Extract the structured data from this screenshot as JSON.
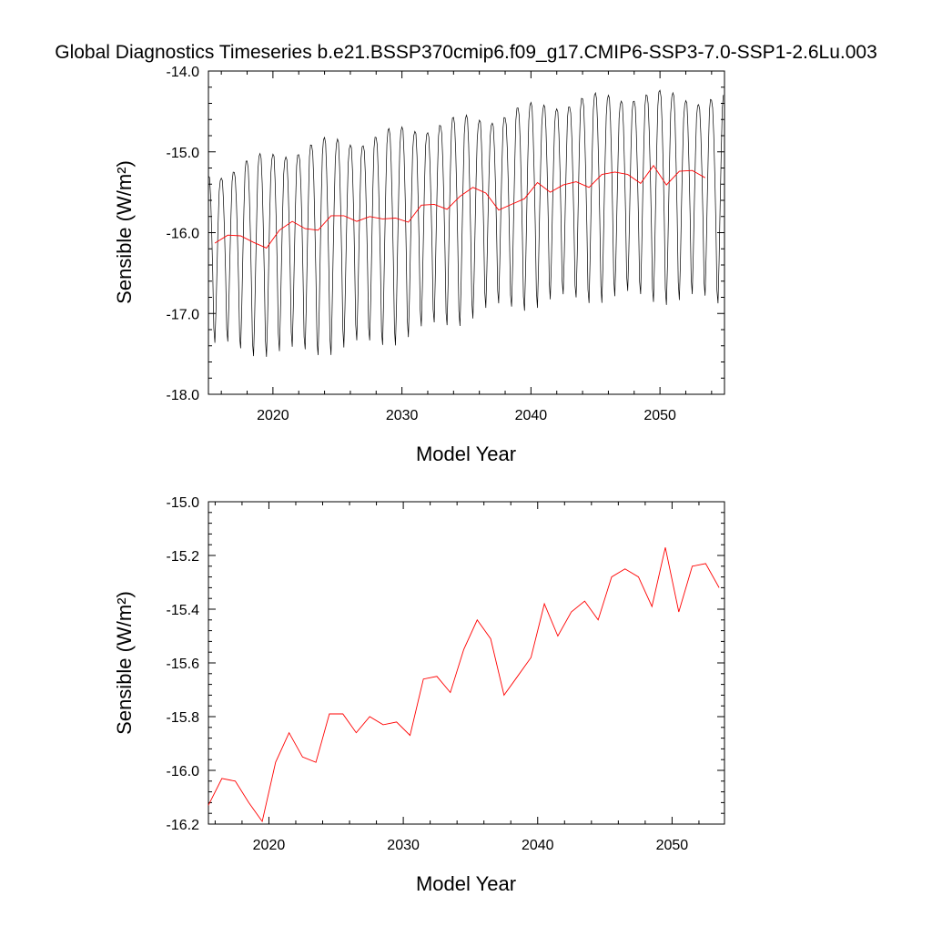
{
  "figure": {
    "title": "Global Diagnostics Timeseries b.e21.BSSP370cmip6.f09_g17.CMIP6-SSP3-7.0-SSP1-2.6Lu.003"
  },
  "colors": {
    "monthly_series": "#000000",
    "annual_series": "#ff0000",
    "axes": "#000000"
  },
  "chart_data": [
    {
      "type": "line",
      "xlabel": "Model Year",
      "ylabel": "Sensible (W/m²)",
      "xlim": [
        2015,
        2055
      ],
      "ylim": [
        -18,
        -14
      ],
      "x_ticks": [
        2020,
        2030,
        2040,
        2050
      ],
      "y_ticks": [
        -18,
        -17,
        -16,
        -15,
        -14
      ],
      "x_tick_labels": [
        "2020",
        "2030",
        "2040",
        "2050"
      ],
      "y_tick_labels": [
        "-18.0",
        "-17.0",
        "-16.0",
        "-15.0",
        "-14.0"
      ],
      "grid": false,
      "monthly_cycle": {
        "start_year": 2015.0,
        "points_per_year": 12,
        "shape": [
          1.0,
          0.95,
          0.7,
          0.3,
          -0.2,
          -0.85,
          -1.0,
          -0.6,
          -0.05,
          0.45,
          0.85,
          0.98
        ],
        "upper_envelope": [
          -15.3,
          -15.15,
          -15.0,
          -14.9,
          -14.85,
          -14.75,
          -14.65,
          -14.6,
          -14.5,
          -14.4,
          -14.35,
          -14.3,
          -14.35
        ],
        "lower_envelope": [
          -17.4,
          -17.45,
          -17.5,
          -17.45,
          -17.4,
          -17.3,
          -17.15,
          -17.0,
          -16.9,
          -16.85,
          -16.8,
          -16.8,
          -16.85
        ],
        "envelope_years": [
          2015,
          2018,
          2021,
          2024,
          2027,
          2030,
          2033,
          2036,
          2039,
          2042,
          2045,
          2048,
          2055
        ]
      },
      "series": [
        {
          "kind": "annual",
          "x": [
            2015.5,
            2016.5,
            2017.5,
            2018.5,
            2019.5,
            2020.5,
            2021.5,
            2022.5,
            2023.5,
            2024.5,
            2025.5,
            2026.5,
            2027.5,
            2028.5,
            2029.5,
            2030.5,
            2031.5,
            2032.5,
            2033.5,
            2034.5,
            2035.5,
            2036.5,
            2037.5,
            2038.5,
            2039.5,
            2040.5,
            2041.5,
            2042.5,
            2043.5,
            2044.5,
            2045.5,
            2046.5,
            2047.5,
            2048.5,
            2049.5,
            2050.5,
            2051.5,
            2052.5,
            2053.5
          ],
          "values": [
            -16.13,
            -16.03,
            -16.04,
            -16.12,
            -16.19,
            -15.97,
            -15.86,
            -15.95,
            -15.97,
            -15.79,
            -15.79,
            -15.86,
            -15.8,
            -15.83,
            -15.82,
            -15.87,
            -15.66,
            -15.65,
            -15.71,
            -15.55,
            -15.44,
            -15.51,
            -15.72,
            -15.65,
            -15.58,
            -15.38,
            -15.5,
            -15.41,
            -15.37,
            -15.44,
            -15.28,
            -15.25,
            -15.28,
            -15.39,
            -15.17,
            -15.41,
            -15.24,
            -15.23,
            -15.32
          ]
        }
      ]
    },
    {
      "type": "line",
      "xlabel": "Model Year",
      "ylabel": "Sensible (W/m²)",
      "xlim": [
        2015.5,
        2053.9
      ],
      "ylim": [
        -16.2,
        -15.0
      ],
      "x_ticks": [
        2020,
        2030,
        2040,
        2050
      ],
      "y_ticks": [
        -16.2,
        -16.0,
        -15.8,
        -15.6,
        -15.4,
        -15.2,
        -15.0
      ],
      "x_tick_labels": [
        "2020",
        "2030",
        "2040",
        "2050"
      ],
      "y_tick_labels": [
        "-16.2",
        "-16.0",
        "-15.8",
        "-15.6",
        "-15.4",
        "-15.2",
        "-15.0"
      ],
      "grid": false,
      "series": [
        {
          "kind": "annual",
          "x": [
            2015.5,
            2016.5,
            2017.5,
            2018.5,
            2019.5,
            2020.5,
            2021.5,
            2022.5,
            2023.5,
            2024.5,
            2025.5,
            2026.5,
            2027.5,
            2028.5,
            2029.5,
            2030.5,
            2031.5,
            2032.5,
            2033.5,
            2034.5,
            2035.5,
            2036.5,
            2037.5,
            2038.5,
            2039.5,
            2040.5,
            2041.5,
            2042.5,
            2043.5,
            2044.5,
            2045.5,
            2046.5,
            2047.5,
            2048.5,
            2049.5,
            2050.5,
            2051.5,
            2052.5,
            2053.5
          ],
          "values": [
            -16.13,
            -16.03,
            -16.04,
            -16.12,
            -16.19,
            -15.97,
            -15.86,
            -15.95,
            -15.97,
            -15.79,
            -15.79,
            -15.86,
            -15.8,
            -15.83,
            -15.82,
            -15.87,
            -15.66,
            -15.65,
            -15.71,
            -15.55,
            -15.44,
            -15.51,
            -15.72,
            -15.65,
            -15.58,
            -15.38,
            -15.5,
            -15.41,
            -15.37,
            -15.44,
            -15.28,
            -15.25,
            -15.28,
            -15.39,
            -15.17,
            -15.41,
            -15.24,
            -15.23,
            -15.32
          ]
        }
      ]
    }
  ]
}
